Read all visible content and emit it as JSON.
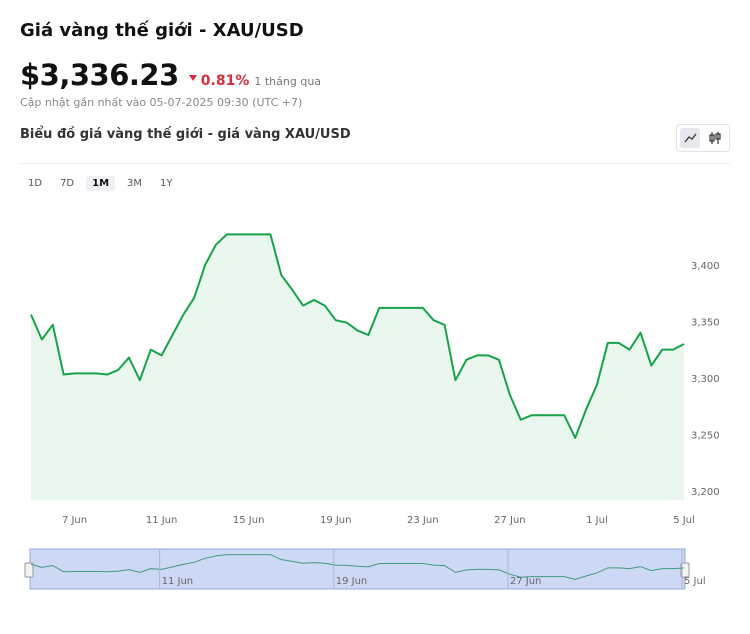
{
  "title": "Giá vàng thế giới - XAU/USD",
  "price": "$3,336.23",
  "change": "0.81%",
  "period": "1 tháng qua",
  "updated": "Cập nhật gần nhất vào 05-07-2025 09:30 (UTC +7)",
  "ranges": {
    "options": [
      "1D",
      "7D",
      "1M",
      "3M",
      "1Y"
    ],
    "active": 2
  },
  "chart_data": {
    "type": "area",
    "title": "Biểu đồ giá vàng thế giới - giá vàng XAU/USD",
    "color": "#16a34a",
    "categories": [
      null,
      null,
      null,
      null,
      "7 Jun",
      null,
      null,
      null,
      null,
      null,
      null,
      null,
      "11 Jun",
      null,
      null,
      null,
      null,
      null,
      null,
      null,
      "15 Jun",
      null,
      null,
      null,
      null,
      null,
      null,
      null,
      "19 Jun",
      null,
      null,
      null,
      null,
      null,
      null,
      null,
      "23 Jun",
      null,
      null,
      null,
      null,
      null,
      null,
      null,
      "27 Jun",
      null,
      null,
      null,
      null,
      null,
      null,
      null,
      "1 Jul",
      null,
      null,
      null,
      null,
      null,
      null,
      null,
      "5 Jul"
    ],
    "values": [
      3357,
      3335,
      3348,
      3304,
      3305,
      3305,
      3305,
      3304,
      3308,
      3319,
      3299,
      3326,
      3321,
      3339,
      3357,
      3372,
      3401,
      3419,
      3428,
      3428,
      3428,
      3428,
      3428,
      3392,
      3379,
      3365,
      3370,
      3365,
      3352,
      3350,
      3343,
      3339,
      3363,
      3363,
      3363,
      3363,
      3363,
      3352,
      3348,
      3299,
      3317,
      3321,
      3321,
      3317,
      3286,
      3264,
      3268,
      3268,
      3268,
      3268,
      3248,
      3273,
      3295,
      3332,
      3332,
      3326,
      3341,
      3312,
      3326,
      3326,
      3331
    ],
    "ylim": [
      3193,
      3454
    ],
    "yticks": [
      {
        "value": 3200,
        "label": "3,200"
      },
      {
        "value": 3250,
        "label": "3,250"
      },
      {
        "value": 3300,
        "label": "3,300"
      },
      {
        "value": 3350,
        "label": "3,350"
      },
      {
        "value": 3400,
        "label": "3,400"
      }
    ]
  }
}
